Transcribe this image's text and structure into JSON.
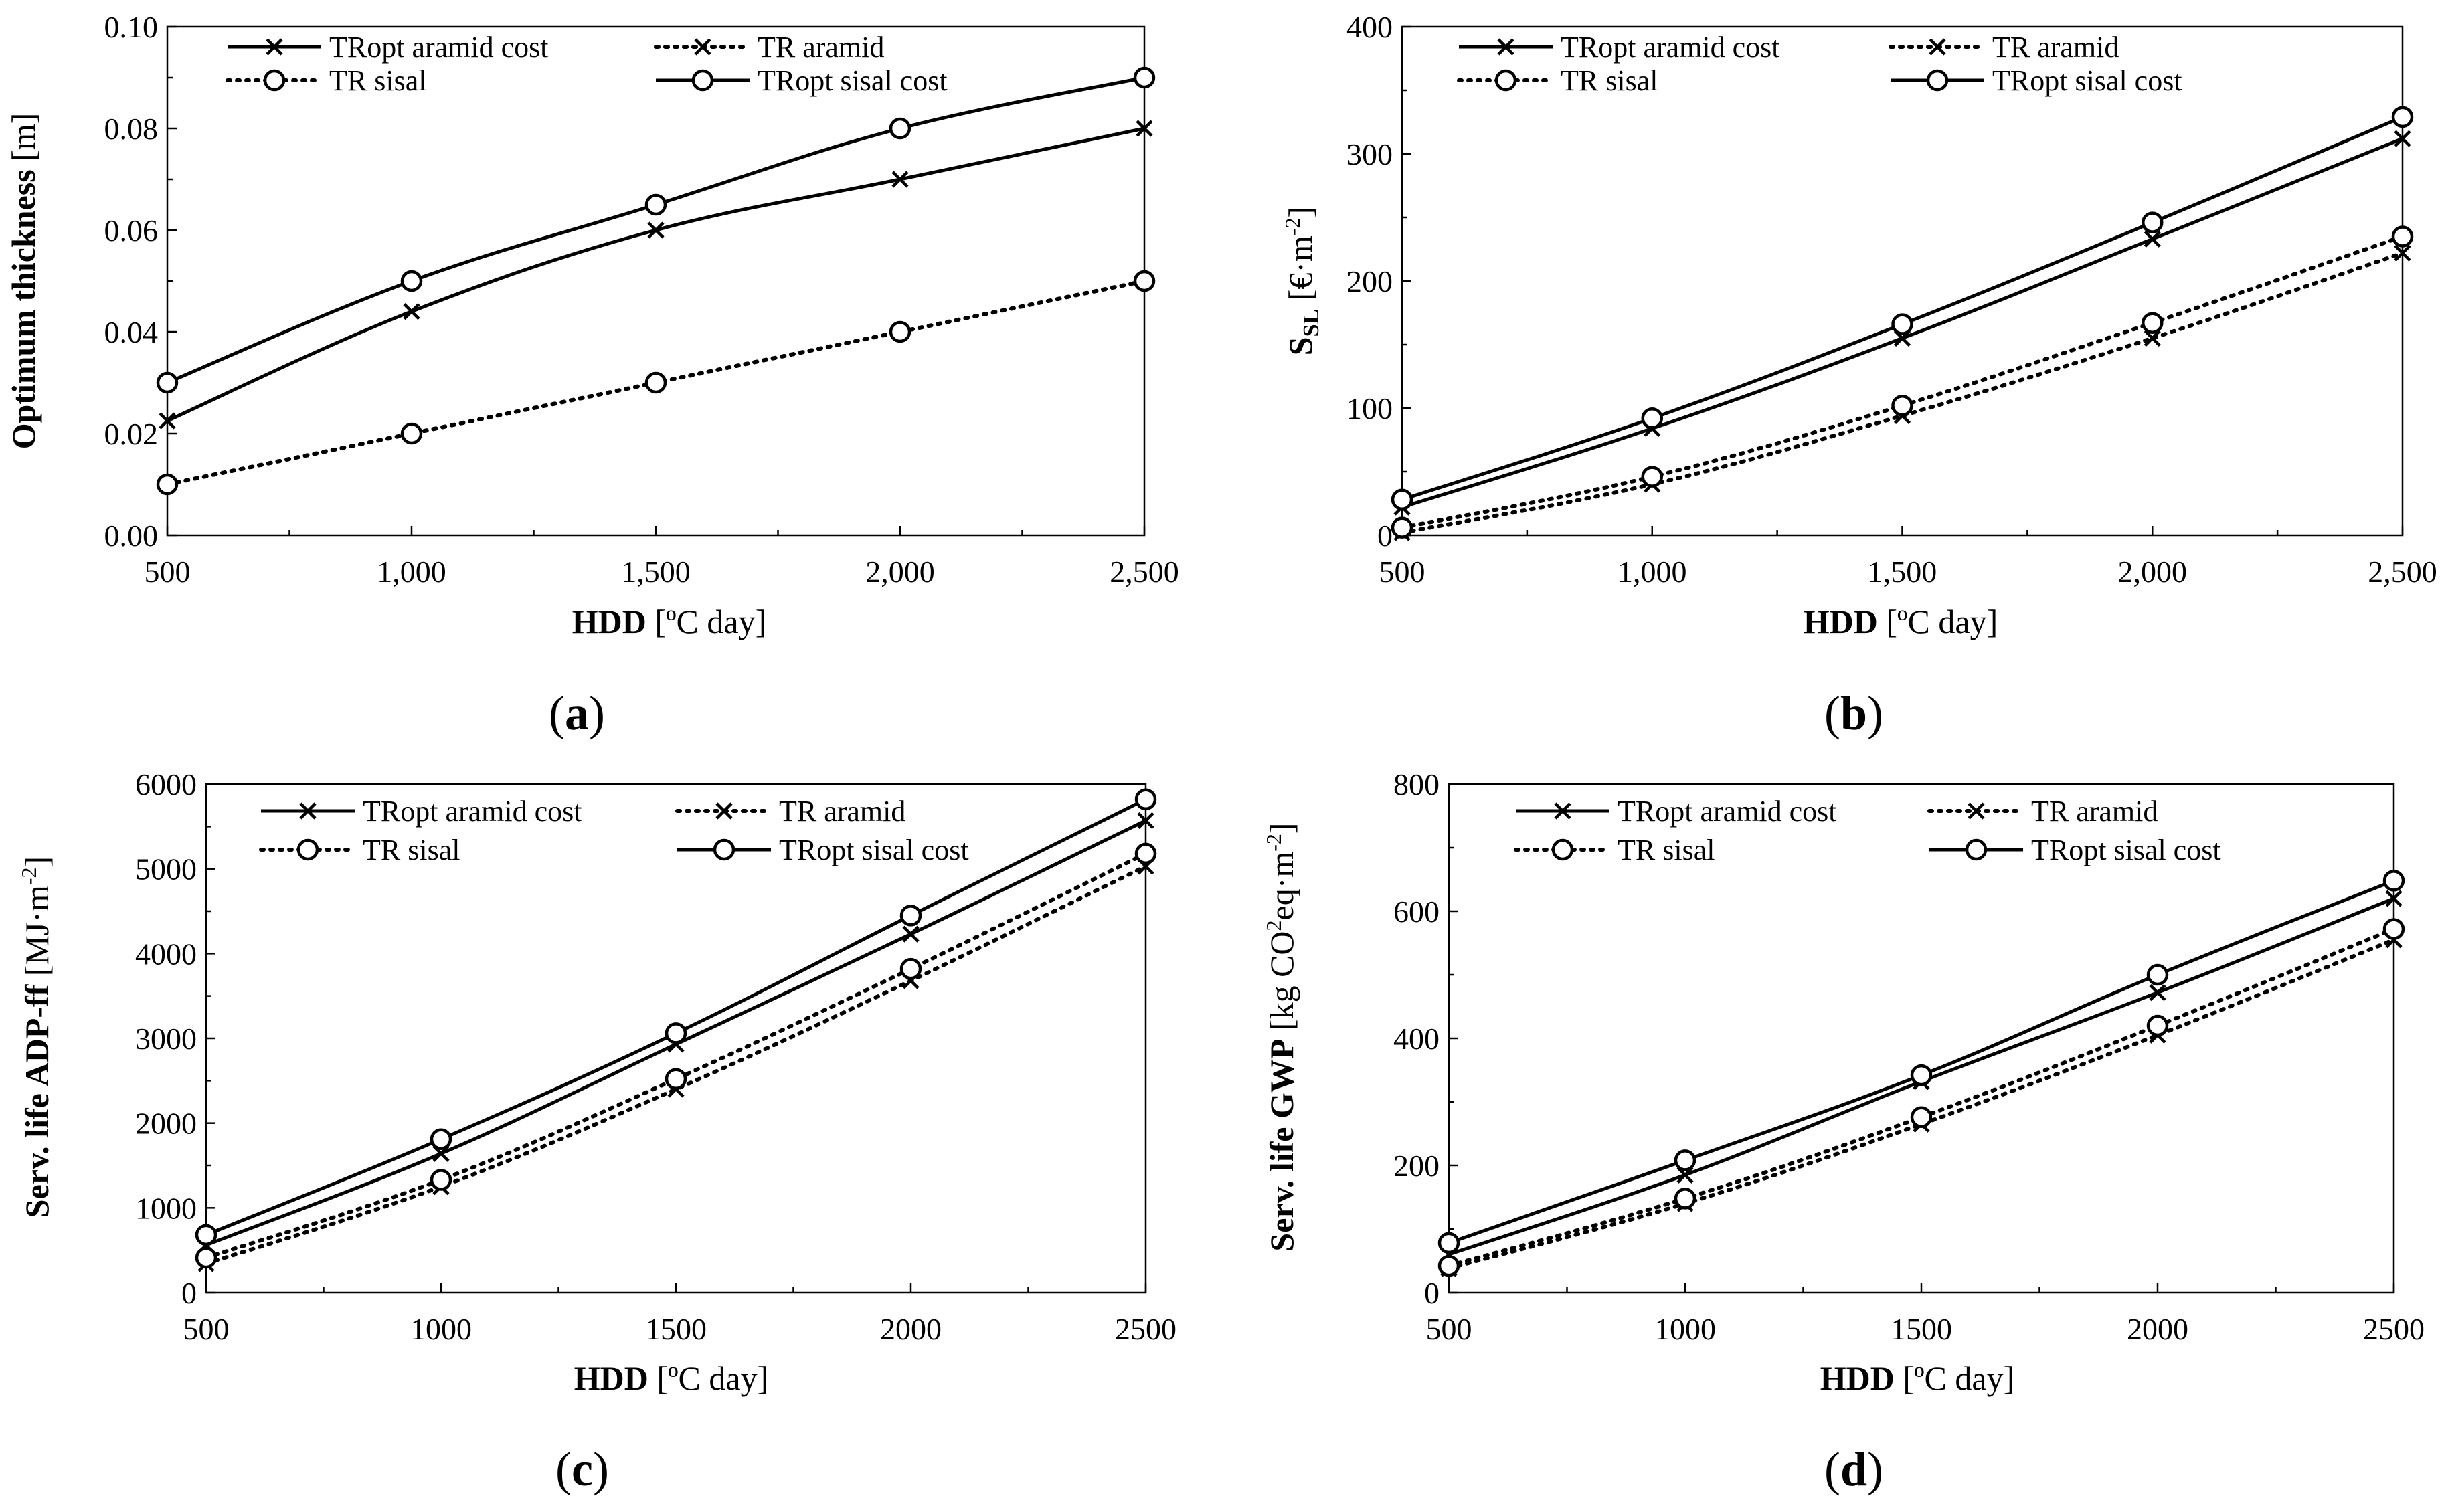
{
  "chart_data": [
    {
      "id": "a",
      "type": "line",
      "panel_label_open": "(",
      "panel_label": "a",
      "panel_label_close": ")",
      "xlabel_bold": "HDD",
      "xlabel_rest": " [ºC day]",
      "ylabel_bold": "Optimum thickness",
      "ylabel_rest": " [m]",
      "x": [
        500,
        1000,
        1500,
        2000,
        2500
      ],
      "xlim": [
        500,
        2500
      ],
      "xticks": [
        500,
        1000,
        1500,
        2000,
        2500
      ],
      "xtick_labels": [
        "500",
        "1,000",
        "1,500",
        "2,000",
        "2,500"
      ],
      "ylim": [
        0,
        0.1
      ],
      "yticks": [
        0,
        0.02,
        0.04,
        0.06,
        0.08,
        0.1
      ],
      "ytick_labels": [
        "0.00",
        "0.02",
        "0.04",
        "0.06",
        "0.08",
        "0.10"
      ],
      "legend_position": "top-left",
      "series": [
        {
          "name": "TRopt aramid cost",
          "style": "solid",
          "marker": "x",
          "values": [
            0.0225,
            0.044,
            0.06,
            0.07,
            0.08
          ]
        },
        {
          "name": "TR aramid",
          "style": "dotted",
          "marker": "x",
          "values": [
            0.01,
            0.02,
            0.03,
            0.04,
            0.05
          ]
        },
        {
          "name": "TR sisal",
          "style": "dotted",
          "marker": "o",
          "values": [
            0.01,
            0.02,
            0.03,
            0.04,
            0.05
          ]
        },
        {
          "name": "TRopt sisal cost",
          "style": "solid",
          "marker": "o",
          "values": [
            0.03,
            0.05,
            0.065,
            0.08,
            0.09
          ]
        }
      ]
    },
    {
      "id": "b",
      "type": "line",
      "panel_label_open": "(",
      "panel_label": "b",
      "panel_label_close": ")",
      "xlabel_bold": "HDD",
      "xlabel_rest": " [ºC day]",
      "ylabel_bold": "S",
      "ylabel_sub": "SL",
      "ylabel_rest": " [€·m",
      "ylabel_sup": "-2",
      "ylabel_end": "]",
      "x": [
        500,
        1000,
        1500,
        2000,
        2500
      ],
      "xlim": [
        500,
        2500
      ],
      "xticks": [
        500,
        1000,
        1500,
        2000,
        2500
      ],
      "xtick_labels": [
        "500",
        "1,000",
        "1,500",
        "2,000",
        "2,500"
      ],
      "ylim": [
        0,
        400
      ],
      "yticks": [
        0,
        100,
        200,
        300,
        400
      ],
      "ytick_labels": [
        "0",
        "100",
        "200",
        "300",
        "400"
      ],
      "legend_position": "top-left",
      "series": [
        {
          "name": "TRopt aramid cost",
          "style": "solid",
          "marker": "x",
          "values": [
            22,
            84,
            155,
            233,
            312
          ]
        },
        {
          "name": "TR aramid",
          "style": "dotted",
          "marker": "x",
          "values": [
            2,
            40,
            94,
            155,
            222
          ]
        },
        {
          "name": "TR sisal",
          "style": "dotted",
          "marker": "o",
          "values": [
            6,
            46,
            102,
            167,
            235
          ]
        },
        {
          "name": "TRopt sisal cost",
          "style": "solid",
          "marker": "o",
          "values": [
            28,
            92,
            166,
            246,
            329
          ]
        }
      ]
    },
    {
      "id": "c",
      "type": "line",
      "panel_label_open": "(",
      "panel_label": "c",
      "panel_label_close": ")",
      "xlabel_bold": "HDD",
      "xlabel_rest": " [ºC day]",
      "ylabel_bold": "Serv. life ADP-ff",
      "ylabel_rest": "  [MJ·m",
      "ylabel_sup": "-2",
      "ylabel_end": "]",
      "x": [
        500,
        1000,
        1500,
        2000,
        2500
      ],
      "xlim": [
        500,
        2500
      ],
      "xticks": [
        500,
        1000,
        1500,
        2000,
        2500
      ],
      "xtick_labels": [
        "500",
        "1000",
        "1500",
        "2000",
        "2500"
      ],
      "ylim": [
        0,
        6000
      ],
      "yticks": [
        0,
        1000,
        2000,
        3000,
        4000,
        5000,
        6000
      ],
      "ytick_labels": [
        "0",
        "1000",
        "2000",
        "3000",
        "4000",
        "5000",
        "6000"
      ],
      "legend_position": "top-left",
      "series": [
        {
          "name": "TRopt aramid cost",
          "style": "solid",
          "marker": "x",
          "values": [
            560,
            1640,
            2930,
            4230,
            5570
          ]
        },
        {
          "name": "TR aramid",
          "style": "dotted",
          "marker": "x",
          "values": [
            340,
            1250,
            2400,
            3680,
            5030
          ]
        },
        {
          "name": "TR sisal",
          "style": "dotted",
          "marker": "o",
          "values": [
            410,
            1330,
            2520,
            3820,
            5180
          ]
        },
        {
          "name": "TRopt sisal cost",
          "style": "solid",
          "marker": "o",
          "values": [
            680,
            1810,
            3060,
            4450,
            5820
          ]
        }
      ]
    },
    {
      "id": "d",
      "type": "line",
      "panel_label_open": "(",
      "panel_label": "d",
      "panel_label_close": ")",
      "xlabel_bold": "HDD",
      "xlabel_rest": " [ºC day]",
      "ylabel_bold": "Serv. life GWP",
      "ylabel_rest": " [kg CO",
      "ylabel_sup": "2",
      "ylabel_mid": "eq·m",
      "ylabel_sup2": "-2",
      "ylabel_end": "]",
      "x": [
        500,
        1000,
        1500,
        2000,
        2500
      ],
      "xlim": [
        500,
        2500
      ],
      "xticks": [
        500,
        1000,
        1500,
        2000,
        2500
      ],
      "xtick_labels": [
        "500",
        "1000",
        "1500",
        "2000",
        "2500"
      ],
      "ylim": [
        0,
        800
      ],
      "yticks": [
        0,
        200,
        400,
        600,
        800
      ],
      "ytick_labels": [
        "0",
        "200",
        "400",
        "600",
        "800"
      ],
      "legend_position": "top-left",
      "series": [
        {
          "name": "TRopt aramid cost",
          "style": "solid",
          "marker": "x",
          "values": [
            60,
            185,
            332,
            472,
            620
          ]
        },
        {
          "name": "TR aramid",
          "style": "dotted",
          "marker": "x",
          "values": [
            38,
            140,
            265,
            405,
            555
          ]
        },
        {
          "name": "TR sisal",
          "style": "dotted",
          "marker": "o",
          "values": [
            42,
            148,
            276,
            420,
            572
          ]
        },
        {
          "name": "TRopt sisal cost",
          "style": "solid",
          "marker": "o",
          "values": [
            78,
            208,
            342,
            500,
            648
          ]
        }
      ]
    }
  ]
}
